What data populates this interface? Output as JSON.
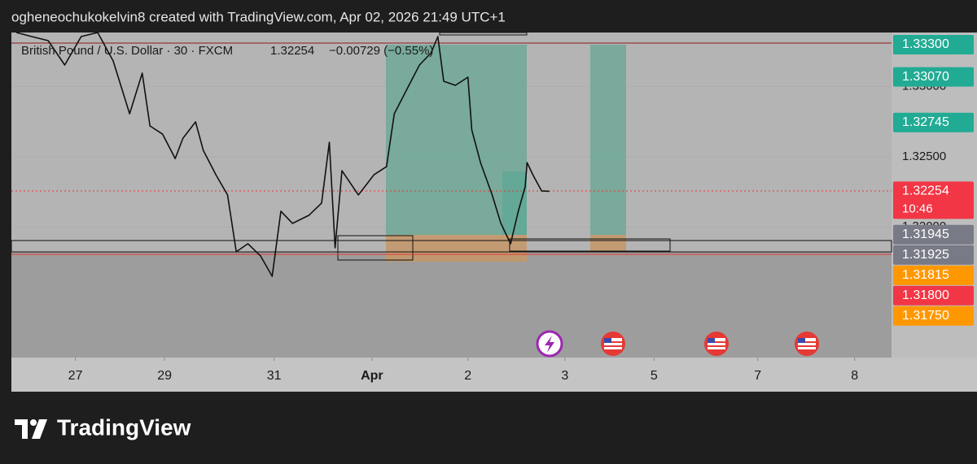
{
  "chart_data": {
    "type": "line",
    "title": "ogheneochukokelvin8 created with TradingView.com, Apr 02, 2026 21:49 UTC+1",
    "subtitle": "British Pound / U.S. Dollar · 30 · FXCM",
    "last_text": "1.32254",
    "change_text": "−0.00729 (−0.55%)",
    "x": [
      -0.61,
      -0.45,
      -0.28,
      -0.11,
      0.06,
      0.23,
      0.39,
      0.56,
      0.69,
      0.77,
      0.9,
      1.03,
      1.11,
      1.24,
      1.32,
      1.45,
      1.57,
      1.66,
      1.78,
      1.91,
      2.03,
      2.12,
      2.24,
      2.41,
      2.54,
      2.62,
      2.68,
      2.75,
      2.92,
      3.08,
      3.21,
      3.29,
      3.42,
      3.55,
      3.67,
      3.74,
      3.8,
      3.92,
      4.05,
      4.09,
      4.18,
      4.3,
      4.39,
      4.49,
      4.57,
      4.64,
      4.66,
      4.72,
      4.81,
      4.89
    ],
    "values": [
      1.33387,
      1.33358,
      1.33329,
      1.33155,
      1.33358,
      1.33387,
      1.33184,
      1.32807,
      1.33097,
      1.3272,
      1.32662,
      1.32488,
      1.32633,
      1.32749,
      1.32546,
      1.32372,
      1.32228,
      1.31822,
      1.3188,
      1.31793,
      1.31648,
      1.32112,
      1.32025,
      1.32083,
      1.3217,
      1.32604,
      1.31851,
      1.32401,
      1.32228,
      1.32372,
      1.3243,
      1.32807,
      1.32981,
      1.33155,
      1.33242,
      1.33358,
      1.33039,
      1.3301,
      1.33068,
      1.32691,
      1.32459,
      1.32228,
      1.32025,
      1.3188,
      1.32112,
      1.32286,
      1.32459,
      1.32372,
      1.32257,
      1.32254
    ],
    "color": "#111111",
    "xlim": [
      -0.66,
      8.42
    ],
    "ylim": [
      1.31068,
      1.33387
    ],
    "xticks": [
      {
        "value": 0,
        "label": "27"
      },
      {
        "value": 0.92,
        "label": "29"
      },
      {
        "value": 2.05,
        "label": "31"
      },
      {
        "value": 3.06,
        "label": "Apr"
      },
      {
        "value": 4.05,
        "label": "2"
      },
      {
        "value": 5.05,
        "label": "3"
      },
      {
        "value": 5.97,
        "label": "5"
      },
      {
        "value": 7.04,
        "label": "7"
      },
      {
        "value": 8.04,
        "label": "8"
      }
    ],
    "yticks": [
      {
        "value": 1.33,
        "label": "1.33000"
      },
      {
        "value": 1.325,
        "label": "1.32500"
      },
      {
        "value": 1.32,
        "label": "1.32000"
      }
    ],
    "price_labels": [
      {
        "value": 1.333,
        "label": "1.33300",
        "color": "#22ab94"
      },
      {
        "value": 1.3307,
        "label": "1.33070",
        "color": "#22ab94"
      },
      {
        "value": 1.32745,
        "color": "#22ab94"
      },
      {
        "value": 1.32254,
        "color": "#f23645"
      },
      {
        "value": 1.31945,
        "color": "#787b86"
      },
      {
        "value": 1.31925,
        "color": "#787b86"
      },
      {
        "value": 1.31815,
        "color": "#ff9800"
      },
      {
        "value": 1.318,
        "label": "1.31800",
        "color": "#f23645"
      },
      {
        "value": 1.3175,
        "label": "1.31750",
        "color": "#ff9800"
      }
    ],
    "countdown": "10:46",
    "brand": "TradingView"
  }
}
